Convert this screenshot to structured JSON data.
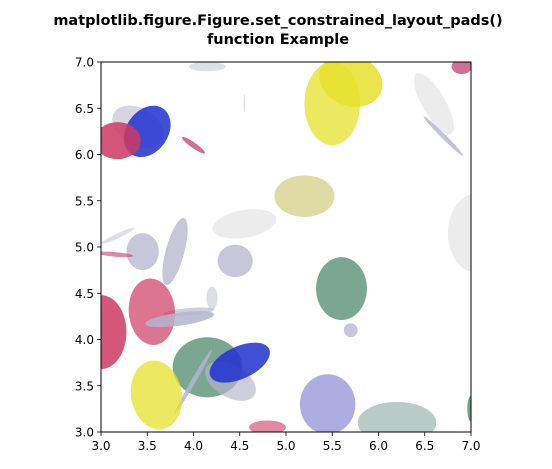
{
  "chart_data": {
    "type": "scatter",
    "title_lines": [
      "matplotlib.figure.Figure.set_constrained_layout_pads()",
      "function Example"
    ],
    "xlabel": "",
    "ylabel": "",
    "xlim": [
      3.0,
      7.0
    ],
    "ylim": [
      3.0,
      7.0
    ],
    "grid": false,
    "xticks": [
      3.0,
      3.5,
      4.0,
      4.5,
      5.0,
      5.5,
      6.0,
      6.5,
      7.0
    ],
    "yticks": [
      3.0,
      3.5,
      4.0,
      4.5,
      5.0,
      5.5,
      6.0,
      6.5,
      7.0
    ],
    "tick_labels": {
      "x": [
        "3.0",
        "3.5",
        "4.0",
        "4.5",
        "5.0",
        "5.5",
        "6.0",
        "6.5",
        "7.0"
      ],
      "y": [
        "3.0",
        "3.5",
        "4.0",
        "4.5",
        "5.0",
        "5.5",
        "6.0",
        "6.5",
        "7.0"
      ]
    },
    "ellipses": [
      {
        "cx": 4.15,
        "cy": 6.95,
        "w": 0.4,
        "h": 0.1,
        "angle": 0,
        "color": "#c8c8d8",
        "alpha": 0.6
      },
      {
        "cx": 5.5,
        "cy": 6.55,
        "w": 0.6,
        "h": 0.9,
        "angle": 0,
        "color": "#e6e12c",
        "alpha": 0.75
      },
      {
        "cx": 5.7,
        "cy": 6.8,
        "w": 0.7,
        "h": 0.55,
        "angle": -20,
        "color": "#e6e12c",
        "alpha": 0.85
      },
      {
        "cx": 6.6,
        "cy": 6.55,
        "w": 0.25,
        "h": 0.75,
        "angle": 30,
        "color": "#dcdcdc",
        "alpha": 0.55
      },
      {
        "cx": 6.9,
        "cy": 6.95,
        "w": 0.22,
        "h": 0.16,
        "angle": 0,
        "color": "#c04070",
        "alpha": 0.75
      },
      {
        "cx": 6.7,
        "cy": 6.2,
        "w": 0.05,
        "h": 0.6,
        "angle": 45,
        "color": "#a8a8c8",
        "alpha": 0.7
      },
      {
        "cx": 3.4,
        "cy": 6.3,
        "w": 0.6,
        "h": 0.4,
        "angle": -30,
        "color": "#b4b4cc",
        "alpha": 0.55
      },
      {
        "cx": 3.5,
        "cy": 6.25,
        "w": 0.45,
        "h": 0.6,
        "angle": -35,
        "color": "#2030d0",
        "alpha": 0.85
      },
      {
        "cx": 3.18,
        "cy": 6.15,
        "w": 0.5,
        "h": 0.4,
        "angle": 0,
        "color": "#cc3a64",
        "alpha": 0.85
      },
      {
        "cx": 4.0,
        "cy": 6.1,
        "w": 0.06,
        "h": 0.3,
        "angle": 55,
        "color": "#c04070",
        "alpha": 0.75
      },
      {
        "cx": 4.55,
        "cy": 6.55,
        "w": 0.02,
        "h": 0.2,
        "angle": 0,
        "color": "#c8c8d8",
        "alpha": 0.5
      },
      {
        "cx": 5.2,
        "cy": 5.55,
        "w": 0.65,
        "h": 0.45,
        "angle": 0,
        "color": "#d4cf86",
        "alpha": 0.75
      },
      {
        "cx": 4.55,
        "cy": 5.25,
        "w": 0.7,
        "h": 0.3,
        "angle": 10,
        "color": "#e4e4e4",
        "alpha": 0.7
      },
      {
        "cx": 7.05,
        "cy": 5.15,
        "w": 0.6,
        "h": 0.85,
        "angle": 0,
        "color": "#e4e4e4",
        "alpha": 0.7
      },
      {
        "cx": 3.45,
        "cy": 4.95,
        "w": 0.35,
        "h": 0.4,
        "angle": 0,
        "color": "#b4b4cc",
        "alpha": 0.75
      },
      {
        "cx": 3.8,
        "cy": 4.95,
        "w": 0.2,
        "h": 0.75,
        "angle": -15,
        "color": "#b4b4cc",
        "alpha": 0.75
      },
      {
        "cx": 3.18,
        "cy": 5.12,
        "w": 0.4,
        "h": 0.05,
        "angle": 25,
        "color": "#c8c8d8",
        "alpha": 0.6
      },
      {
        "cx": 3.15,
        "cy": 4.92,
        "w": 0.4,
        "h": 0.05,
        "angle": -5,
        "color": "#c04070",
        "alpha": 0.6
      },
      {
        "cx": 4.45,
        "cy": 4.85,
        "w": 0.38,
        "h": 0.35,
        "angle": 0,
        "color": "#b4b4cc",
        "alpha": 0.75
      },
      {
        "cx": 5.6,
        "cy": 4.55,
        "w": 0.55,
        "h": 0.68,
        "angle": 0,
        "color": "#4f8a6e",
        "alpha": 0.75
      },
      {
        "cx": 4.2,
        "cy": 4.45,
        "w": 0.12,
        "h": 0.25,
        "angle": 0,
        "color": "#c8c8d8",
        "alpha": 0.6
      },
      {
        "cx": 3.95,
        "cy": 4.3,
        "w": 0.55,
        "h": 0.08,
        "angle": 5,
        "color": "#b4b4cc",
        "alpha": 0.65
      },
      {
        "cx": 3.55,
        "cy": 4.3,
        "w": 0.5,
        "h": 0.72,
        "angle": 5,
        "color": "#cc3a64",
        "alpha": 0.7
      },
      {
        "cx": 3.85,
        "cy": 4.22,
        "w": 0.75,
        "h": 0.14,
        "angle": 8,
        "color": "#b4b4cc",
        "alpha": 0.85
      },
      {
        "cx": 3.0,
        "cy": 4.08,
        "w": 0.55,
        "h": 0.8,
        "angle": 0,
        "color": "#cc3a64",
        "alpha": 0.85
      },
      {
        "cx": 5.7,
        "cy": 4.1,
        "w": 0.15,
        "h": 0.15,
        "angle": 0,
        "color": "#b4b4cc",
        "alpha": 0.75
      },
      {
        "cx": 4.15,
        "cy": 3.7,
        "w": 0.75,
        "h": 0.65,
        "angle": 0,
        "color": "#4f8a6e",
        "alpha": 0.75
      },
      {
        "cx": 4.4,
        "cy": 3.55,
        "w": 0.6,
        "h": 0.35,
        "angle": -30,
        "color": "#b4b4cc",
        "alpha": 0.65
      },
      {
        "cx": 4.5,
        "cy": 3.75,
        "w": 0.7,
        "h": 0.35,
        "angle": 25,
        "color": "#2030d0",
        "alpha": 0.85
      },
      {
        "cx": 4.0,
        "cy": 3.55,
        "w": 0.8,
        "h": 0.05,
        "angle": 60,
        "color": "#b4b4cc",
        "alpha": 0.85
      },
      {
        "cx": 3.6,
        "cy": 3.4,
        "w": 0.55,
        "h": 0.75,
        "angle": 10,
        "color": "#e6e12c",
        "alpha": 0.75
      },
      {
        "cx": 5.45,
        "cy": 3.3,
        "w": 0.6,
        "h": 0.65,
        "angle": 0,
        "color": "#8a8ad4",
        "alpha": 0.7
      },
      {
        "cx": 6.2,
        "cy": 3.1,
        "w": 0.85,
        "h": 0.45,
        "angle": 0,
        "color": "#8aa8a0",
        "alpha": 0.6
      },
      {
        "cx": 4.8,
        "cy": 3.05,
        "w": 0.4,
        "h": 0.15,
        "angle": 0,
        "color": "#cc3a64",
        "alpha": 0.6
      },
      {
        "cx": 7.0,
        "cy": 3.25,
        "w": 0.08,
        "h": 0.28,
        "angle": 0,
        "color": "#4f8a6e",
        "alpha": 0.8
      }
    ]
  }
}
